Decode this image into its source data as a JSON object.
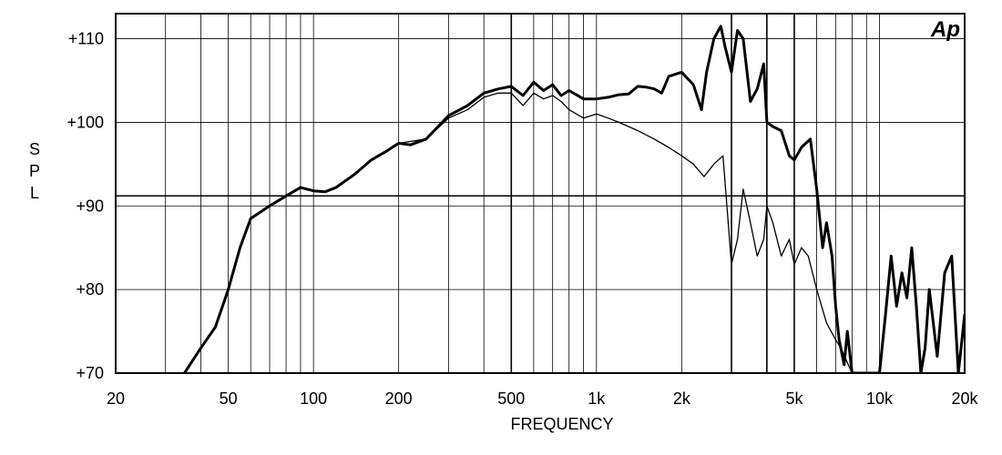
{
  "chart_data": {
    "type": "line",
    "title": "",
    "xlabel": "FREQUENCY",
    "ylabel": "SPL",
    "x_scale": "log",
    "xlim": [
      20,
      20000
    ],
    "ylim": [
      70,
      113
    ],
    "grid": true,
    "x_ticks": [
      {
        "value": 20,
        "label": "20"
      },
      {
        "value": 50,
        "label": "50"
      },
      {
        "value": 100,
        "label": "100"
      },
      {
        "value": 200,
        "label": "200"
      },
      {
        "value": 500,
        "label": "500"
      },
      {
        "value": 1000,
        "label": "1k"
      },
      {
        "value": 2000,
        "label": "2k"
      },
      {
        "value": 5000,
        "label": "5k"
      },
      {
        "value": 10000,
        "label": "10k"
      },
      {
        "value": 20000,
        "label": "20k"
      }
    ],
    "y_ticks": [
      {
        "value": 70,
        "label": "+70"
      },
      {
        "value": 80,
        "label": "+80"
      },
      {
        "value": 90,
        "label": "+90"
      },
      {
        "value": 100,
        "label": "+100"
      },
      {
        "value": 110,
        "label": "+110"
      }
    ],
    "bold_x_lines": [
      500,
      3000,
      4000,
      5000
    ],
    "bold_y_lines": [
      91.2
    ],
    "logo": "Ap",
    "series": [
      {
        "style": "bold",
        "x": [
          35,
          40,
          45,
          50,
          55,
          60,
          70,
          80,
          90,
          100,
          110,
          120,
          140,
          160,
          180,
          200,
          220,
          250,
          300,
          350,
          400,
          450,
          500,
          550,
          600,
          650,
          700,
          750,
          800,
          900,
          1000,
          1100,
          1200,
          1300,
          1400,
          1500,
          1600,
          1700,
          1800,
          2000,
          2200,
          2350,
          2450,
          2600,
          2750,
          2850,
          3000,
          3150,
          3300,
          3500,
          3700,
          3900,
          4000,
          4200,
          4500,
          4800,
          5000,
          5300,
          5700,
          6000,
          6300,
          6500,
          6800,
          7000,
          7200,
          7500,
          7700,
          8000,
          9000,
          10000,
          10500,
          11000,
          11500,
          12000,
          12500,
          13000,
          13500,
          14000,
          14500,
          15000,
          16000,
          17000,
          18000,
          19000,
          20000
        ],
        "y": [
          70,
          73,
          75.5,
          80,
          85,
          88.5,
          90,
          91.2,
          92.2,
          91.8,
          91.7,
          92.2,
          93.8,
          95.5,
          96.5,
          97.5,
          97.3,
          98,
          100.8,
          102,
          103.5,
          104,
          104.3,
          103.2,
          104.8,
          103.8,
          104.5,
          103.2,
          103.8,
          102.8,
          102.8,
          103,
          103.3,
          103.4,
          104.3,
          104.2,
          104,
          103.5,
          105.5,
          106,
          104.5,
          101.5,
          106,
          110,
          111.5,
          109,
          106,
          111,
          110,
          102.5,
          104,
          107,
          100,
          99.5,
          99,
          96,
          95.5,
          97,
          98,
          92,
          85,
          88,
          84,
          78,
          74,
          71,
          75,
          70,
          70,
          70,
          77,
          84,
          78,
          82,
          79,
          85,
          78,
          70,
          73,
          80,
          72,
          82,
          84,
          70,
          77
        ]
      },
      {
        "style": "thin",
        "x": [
          200,
          250,
          300,
          350,
          400,
          450,
          500,
          550,
          600,
          650,
          700,
          750,
          800,
          900,
          1000,
          1100,
          1200,
          1400,
          1600,
          1800,
          2000,
          2200,
          2400,
          2600,
          2800,
          3000,
          3150,
          3300,
          3500,
          3700,
          3900,
          4000,
          4200,
          4500,
          4800,
          5000,
          5300,
          5600,
          6000,
          6500,
          7000,
          7300,
          8000
        ],
        "y": [
          97.5,
          98,
          100.5,
          101.5,
          103,
          103.5,
          103.5,
          102,
          103.5,
          102.8,
          103.2,
          102.5,
          101.5,
          100.5,
          101,
          100.5,
          100,
          99,
          98,
          97,
          96,
          95,
          93.5,
          95,
          96,
          83,
          86,
          92,
          88,
          84,
          86,
          90,
          88,
          84,
          86,
          83,
          85,
          84,
          80,
          76,
          74,
          73,
          70
        ]
      }
    ]
  }
}
